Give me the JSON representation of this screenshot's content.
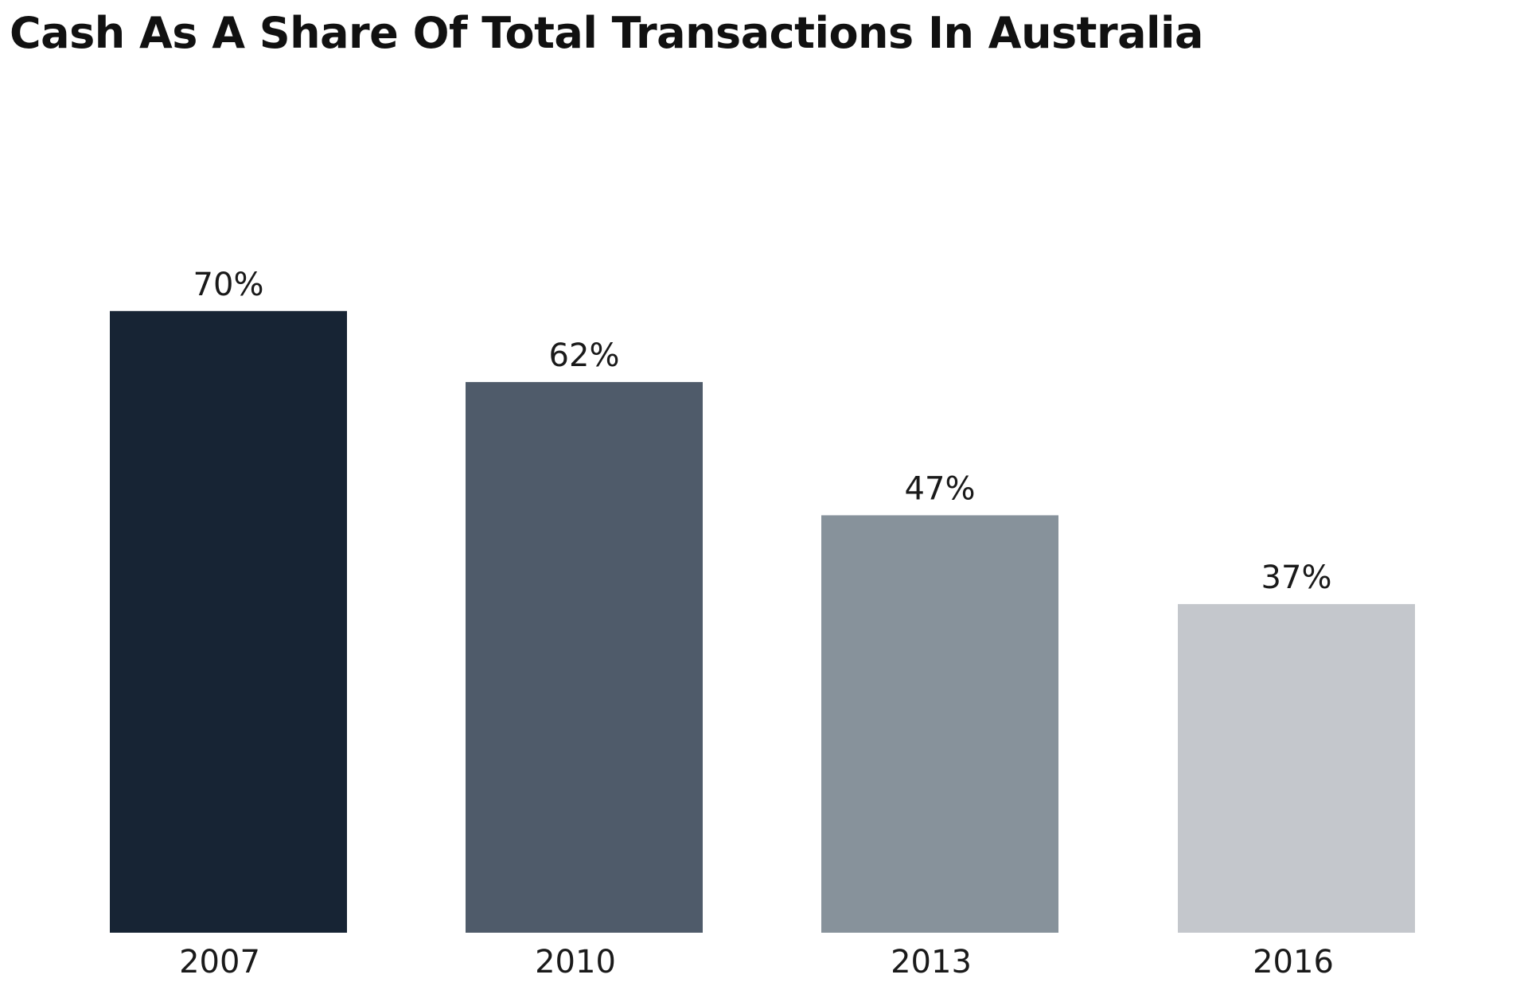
{
  "chart_data": {
    "type": "bar",
    "title": "Cash As A Share Of Total Transactions In Australia",
    "categories": [
      "2007",
      "2010",
      "2013",
      "2016"
    ],
    "values": [
      70,
      62,
      47,
      37
    ],
    "value_labels": [
      "70%",
      "62%",
      "47%",
      "37%"
    ],
    "colors": [
      "#172434",
      "#4f5b6a",
      "#87929b",
      "#c4c7cc"
    ],
    "ylim": [
      0,
      80
    ],
    "xlabel": "",
    "ylabel": "",
    "grid": false,
    "legend": "none"
  }
}
